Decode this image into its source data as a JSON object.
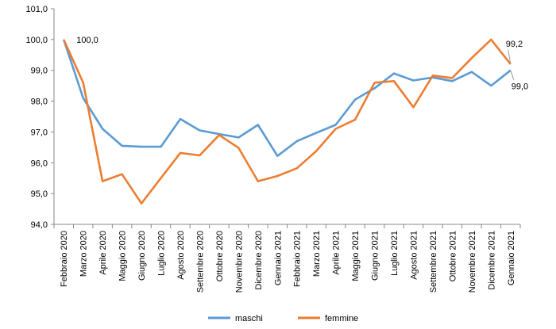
{
  "chart_data": {
    "type": "line",
    "categories": [
      "Febbraio 2020",
      "Marzo 2020",
      "Aprile 2020",
      "Maggio 2020",
      "Giugno 2020",
      "Luglio 2020",
      "Agosto 2020",
      "Settembre 2020",
      "Ottobre 2020",
      "Novembre 2020",
      "Dicembre 2020",
      "Gennaio 2021",
      "Febbraio 2021",
      "Marzo 2021",
      "Aprile 2021",
      "Maggio 2021",
      "Giugno 2021",
      "Luglio 2021",
      "Agosto 2021",
      "Settembre 2021",
      "Ottobre 2021",
      "Novembre 2021",
      "Dicembre 2021",
      "Gennaio 2021"
    ],
    "series": [
      {
        "name": "maschi",
        "color": "#5B9BD5",
        "values": [
          100.0,
          98.1,
          97.1,
          96.55,
          96.52,
          96.52,
          97.42,
          97.05,
          96.93,
          96.82,
          97.23,
          96.22,
          96.7,
          96.97,
          97.23,
          98.05,
          98.42,
          98.9,
          98.67,
          98.77,
          98.65,
          98.95,
          98.5,
          99.0
        ]
      },
      {
        "name": "femmine",
        "color": "#ED7D31",
        "values": [
          100.0,
          98.6,
          95.4,
          95.63,
          94.68,
          95.5,
          96.32,
          96.24,
          96.9,
          96.48,
          95.4,
          95.57,
          95.82,
          96.38,
          97.1,
          97.4,
          98.6,
          98.65,
          97.8,
          98.83,
          98.75,
          99.4,
          100.0,
          99.2
        ]
      }
    ],
    "ylim": [
      94.0,
      101.0
    ],
    "yticks": [
      "94,0",
      "95,0",
      "96,0",
      "97,0",
      "98,0",
      "99,0",
      "100,0",
      "101,0"
    ],
    "grid": false,
    "legend": "bottom",
    "annotations": {
      "start_label": "100,0",
      "end_femmine_label": "99,2",
      "end_maschi_label": "99,0"
    }
  }
}
